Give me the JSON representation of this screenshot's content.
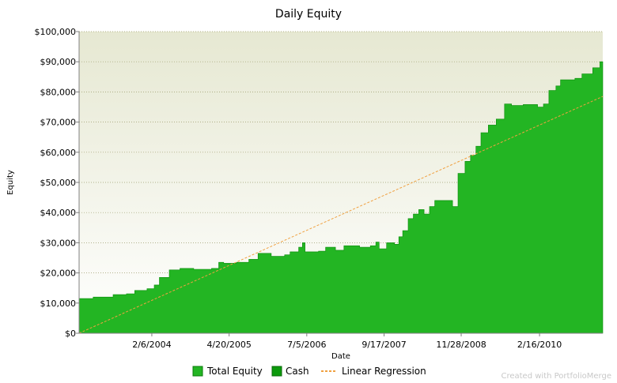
{
  "chart_data": {
    "type": "area",
    "title": "Daily Equity",
    "xlabel": "Date",
    "ylabel": "Equity",
    "ylim": [
      0,
      100000
    ],
    "x_range": [
      "2002-12-20",
      "2011-02-10"
    ],
    "y_ticks": [
      "$0",
      "$10,000",
      "$20,000",
      "$30,000",
      "$40,000",
      "$50,000",
      "$60,000",
      "$70,000",
      "$80,000",
      "$90,000",
      "$100,000"
    ],
    "x_tick_labels": [
      "2/6/2004",
      "4/20/2005",
      "7/5/2006",
      "9/17/2007",
      "11/28/2008",
      "2/16/2010"
    ],
    "x_tick_dates": [
      "2004-02-06",
      "2005-04-20",
      "2006-07-05",
      "2007-09-17",
      "2008-11-28",
      "2010-02-16"
    ],
    "grid": "horizontal",
    "legend_position": "bottom",
    "series": [
      {
        "name": "Total Equity",
        "color": "#23b523",
        "points": [
          [
            "2002-12-20",
            0
          ],
          [
            "2002-12-21",
            11500
          ],
          [
            "2003-03-01",
            11500
          ],
          [
            "2003-03-10",
            12000
          ],
          [
            "2003-06-20",
            12000
          ],
          [
            "2003-07-01",
            12800
          ],
          [
            "2003-09-15",
            13100
          ],
          [
            "2003-11-01",
            14200
          ],
          [
            "2004-01-10",
            14800
          ],
          [
            "2004-02-20",
            16000
          ],
          [
            "2004-03-20",
            18500
          ],
          [
            "2004-05-15",
            21000
          ],
          [
            "2004-07-15",
            21500
          ],
          [
            "2004-10-01",
            21200
          ],
          [
            "2005-01-10",
            21500
          ],
          [
            "2005-02-20",
            23500
          ],
          [
            "2005-03-20",
            23200
          ],
          [
            "2005-06-01",
            23500
          ],
          [
            "2005-08-10",
            24500
          ],
          [
            "2005-10-01",
            26500
          ],
          [
            "2005-12-15",
            25500
          ],
          [
            "2006-03-01",
            26000
          ],
          [
            "2006-04-01",
            27000
          ],
          [
            "2006-05-20",
            28500
          ],
          [
            "2006-06-10",
            30000
          ],
          [
            "2006-06-25",
            27000
          ],
          [
            "2006-09-10",
            27200
          ],
          [
            "2006-10-20",
            28500
          ],
          [
            "2006-12-15",
            27500
          ],
          [
            "2007-02-01",
            29000
          ],
          [
            "2007-05-01",
            28500
          ],
          [
            "2007-07-01",
            29000
          ],
          [
            "2007-08-01",
            30200
          ],
          [
            "2007-08-20",
            28000
          ],
          [
            "2007-10-01",
            30000
          ],
          [
            "2007-11-15",
            29500
          ],
          [
            "2007-12-10",
            32000
          ],
          [
            "2008-01-01",
            34000
          ],
          [
            "2008-02-01",
            38000
          ],
          [
            "2008-03-01",
            39500
          ],
          [
            "2008-04-01",
            41000
          ],
          [
            "2008-05-01",
            39500
          ],
          [
            "2008-06-01",
            42000
          ],
          [
            "2008-07-01",
            44000
          ],
          [
            "2008-09-15",
            44000
          ],
          [
            "2008-10-10",
            42000
          ],
          [
            "2008-11-10",
            53000
          ],
          [
            "2008-12-20",
            57000
          ],
          [
            "2009-01-20",
            59000
          ],
          [
            "2009-02-20",
            62000
          ],
          [
            "2009-03-20",
            66500
          ],
          [
            "2009-05-01",
            69000
          ],
          [
            "2009-06-15",
            71000
          ],
          [
            "2009-08-01",
            76000
          ],
          [
            "2009-09-10",
            75500
          ],
          [
            "2009-11-15",
            75800
          ],
          [
            "2010-02-05",
            75000
          ],
          [
            "2010-03-10",
            76000
          ],
          [
            "2010-04-10",
            80500
          ],
          [
            "2010-05-20",
            82000
          ],
          [
            "2010-06-15",
            84000
          ],
          [
            "2010-09-05",
            84500
          ],
          [
            "2010-10-15",
            86000
          ],
          [
            "2010-12-15",
            88000
          ],
          [
            "2011-01-25",
            90000
          ],
          [
            "2011-02-10",
            90000
          ]
        ]
      },
      {
        "name": "Cash",
        "color": "#0c9a0c"
      },
      {
        "name": "Linear Regression",
        "color": "#f0a040",
        "style": "dashed",
        "start_value": 0,
        "end_value": 78500
      }
    ]
  },
  "footer": {
    "credit": "Created with PortfolioMerge"
  }
}
